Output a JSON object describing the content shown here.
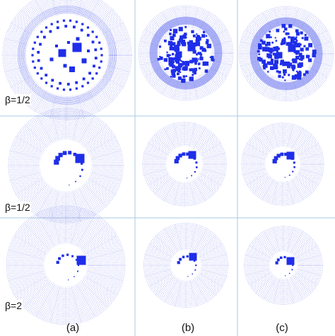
{
  "figure": {
    "row_labels": [
      "β=1/2",
      "β=1/2",
      "β=2"
    ],
    "column_labels": [
      "(a)",
      "(b)",
      "(c)"
    ],
    "colors": {
      "pattern": "#1f2ee8",
      "rings": "#5b67e6",
      "divider": "#a9c8e6",
      "text": "#111111"
    }
  }
}
